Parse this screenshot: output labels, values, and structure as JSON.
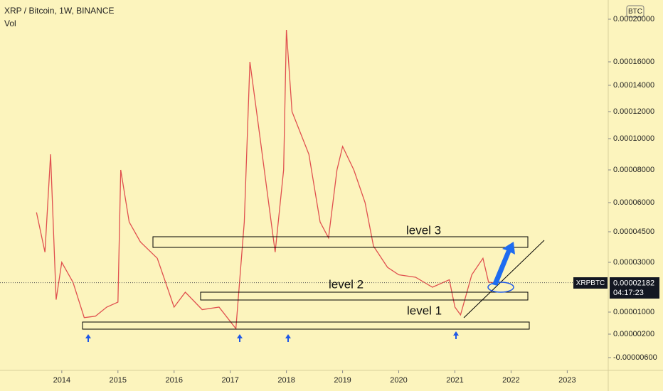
{
  "chart_data": {
    "type": "line",
    "title": "XRP / Bitcoin, 1W, BINANCE",
    "subtitle": "Vol",
    "currency": "BTC",
    "symbol": "XRPBTC",
    "last_price_label": "0.00002182",
    "countdown": "04:17:23",
    "annotations": [
      "level 3",
      "level 2",
      "level 1"
    ],
    "color": "#e0504f",
    "x": [
      2013.55,
      2013.7,
      2013.8,
      2013.9,
      2014.0,
      2014.2,
      2014.4,
      2014.6,
      2014.8,
      2015.0,
      2015.05,
      2015.2,
      2015.4,
      2015.7,
      2016.0,
      2016.2,
      2016.5,
      2016.8,
      2017.1,
      2017.25,
      2017.35,
      2017.5,
      2017.8,
      2017.95,
      2018.0,
      2018.1,
      2018.4,
      2018.6,
      2018.75,
      2018.9,
      2019.0,
      2019.2,
      2019.4,
      2019.55,
      2019.8,
      2020.0,
      2020.3,
      2020.6,
      2020.9,
      2021.0,
      2021.1,
      2021.3,
      2021.5,
      2021.6,
      2021.7
    ],
    "values": [
      5.5e-05,
      3.5e-05,
      9e-05,
      1.5e-05,
      3e-05,
      2.2e-05,
      8e-06,
      8.5e-06,
      1.2e-05,
      1.4e-05,
      8e-05,
      5e-05,
      4e-05,
      3.2e-05,
      1.2e-05,
      1.8e-05,
      1.1e-05,
      1.2e-05,
      4e-06,
      5e-05,
      0.00016,
      0.00011,
      3.5e-05,
      8e-05,
      0.00019,
      0.00012,
      9e-05,
      5e-05,
      4.2e-05,
      8e-05,
      9.5e-05,
      8e-05,
      6e-05,
      3.8e-05,
      2.8e-05,
      2.5e-05,
      2.4e-05,
      2e-05,
      2.3e-05,
      1.2e-05,
      9e-06,
      2.5e-05,
      3.2e-05,
      2.2e-05,
      2.182e-05
    ],
    "xlim": [
      2012.9,
      2023.73
    ],
    "xticks": [
      2014,
      2015,
      2016,
      2017,
      2018,
      2019,
      2020,
      2021,
      2022,
      2023
    ],
    "yticks": [
      {
        "value": 0.0002,
        "label": "0.00020000"
      },
      {
        "value": 0.00016,
        "label": "0.00016000"
      },
      {
        "value": 0.00014,
        "label": "0.00014000"
      },
      {
        "value": 0.00012,
        "label": "0.00012000"
      },
      {
        "value": 0.0001,
        "label": "0.00010000"
      },
      {
        "value": 8e-05,
        "label": "0.00008000"
      },
      {
        "value": 6e-05,
        "label": "0.00006000"
      },
      {
        "value": 4.5e-05,
        "label": "0.00004500"
      },
      {
        "value": 3e-05,
        "label": "0.00003000"
      },
      {
        "value": 1e-05,
        "label": "0.00001000"
      },
      {
        "value": 2e-06,
        "label": "0.00000200"
      },
      {
        "value": -6e-06,
        "label": "-0.00000600"
      }
    ]
  }
}
